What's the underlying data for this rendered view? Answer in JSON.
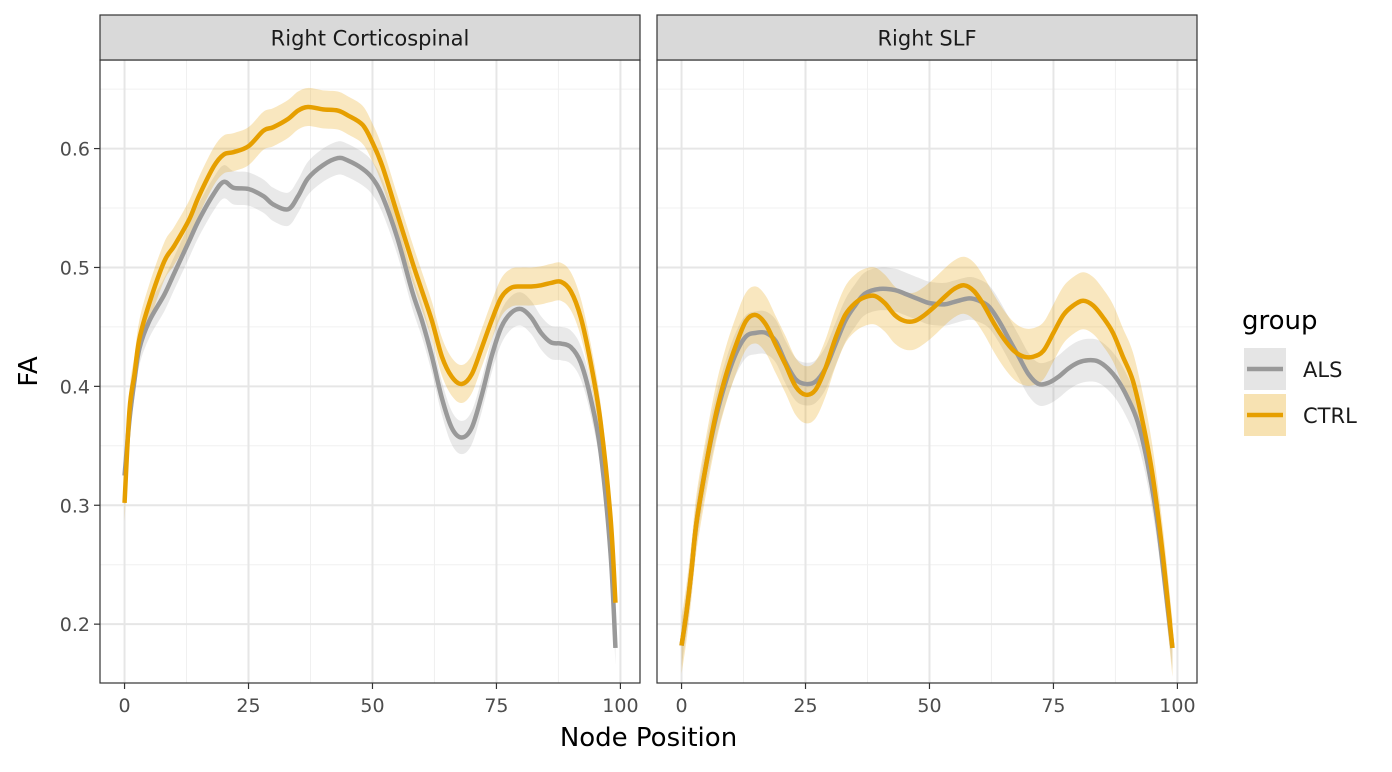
{
  "chart_data": {
    "type": "line",
    "xlabel": "Node Position",
    "ylabel": "FA",
    "xlim": [
      -4.95,
      103.95
    ],
    "ylim": [
      0.1505,
      0.6745
    ],
    "x_ticks": [
      0,
      25,
      50,
      75,
      100
    ],
    "y_ticks": [
      0.2,
      0.3,
      0.4,
      0.5,
      0.6
    ],
    "x_tick_labels": [
      "0",
      "25",
      "50",
      "75",
      "100"
    ],
    "y_tick_labels": [
      "0.2",
      "0.3",
      "0.4",
      "0.5",
      "0.6"
    ],
    "grid": true,
    "legend": {
      "title": "group",
      "position": "right",
      "entries": [
        "ALS",
        "CTRL"
      ]
    },
    "series_colors": {
      "ALS": "#999999",
      "CTRL": "#E69F00"
    },
    "panels": [
      {
        "strip_label": "Right Corticospinal",
        "series": [
          {
            "name": "ALS",
            "ribbon_half_width": 0.014,
            "points": [
              [
                0,
                0.325
              ],
              [
                1,
                0.372
              ],
              [
                2,
                0.405
              ],
              [
                3,
                0.432
              ],
              [
                5,
                0.455
              ],
              [
                8,
                0.477
              ],
              [
                10,
                0.495
              ],
              [
                13,
                0.522
              ],
              [
                15,
                0.54
              ],
              [
                18,
                0.562
              ],
              [
                20,
                0.572
              ],
              [
                22,
                0.567
              ],
              [
                25,
                0.566
              ],
              [
                28,
                0.56
              ],
              [
                30,
                0.553
              ],
              [
                33,
                0.549
              ],
              [
                35,
                0.56
              ],
              [
                37,
                0.575
              ],
              [
                40,
                0.586
              ],
              [
                43,
                0.592
              ],
              [
                45,
                0.59
              ],
              [
                48,
                0.583
              ],
              [
                50,
                0.575
              ],
              [
                52,
                0.56
              ],
              [
                55,
                0.525
              ],
              [
                58,
                0.48
              ],
              [
                60,
                0.455
              ],
              [
                62,
                0.425
              ],
              [
                64,
                0.39
              ],
              [
                66,
                0.365
              ],
              [
                68,
                0.357
              ],
              [
                70,
                0.365
              ],
              [
                72,
                0.392
              ],
              [
                74,
                0.425
              ],
              [
                76,
                0.45
              ],
              [
                78,
                0.462
              ],
              [
                80,
                0.465
              ],
              [
                82,
                0.458
              ],
              [
                84,
                0.445
              ],
              [
                86,
                0.437
              ],
              [
                88,
                0.436
              ],
              [
                90,
                0.433
              ],
              [
                92,
                0.42
              ],
              [
                94,
                0.39
              ],
              [
                96,
                0.345
              ],
              [
                98,
                0.26
              ],
              [
                99,
                0.18
              ]
            ]
          },
          {
            "name": "CTRL",
            "ribbon_half_width": 0.016,
            "points": [
              [
                0,
                0.302
              ],
              [
                1,
                0.38
              ],
              [
                2,
                0.41
              ],
              [
                3,
                0.44
              ],
              [
                5,
                0.47
              ],
              [
                8,
                0.505
              ],
              [
                10,
                0.518
              ],
              [
                13,
                0.54
              ],
              [
                15,
                0.56
              ],
              [
                18,
                0.585
              ],
              [
                20,
                0.595
              ],
              [
                22,
                0.597
              ],
              [
                25,
                0.602
              ],
              [
                28,
                0.615
              ],
              [
                30,
                0.618
              ],
              [
                33,
                0.625
              ],
              [
                35,
                0.632
              ],
              [
                37,
                0.635
              ],
              [
                40,
                0.633
              ],
              [
                43,
                0.632
              ],
              [
                45,
                0.628
              ],
              [
                48,
                0.62
              ],
              [
                50,
                0.605
              ],
              [
                52,
                0.585
              ],
              [
                55,
                0.545
              ],
              [
                58,
                0.505
              ],
              [
                60,
                0.48
              ],
              [
                62,
                0.455
              ],
              [
                64,
                0.425
              ],
              [
                66,
                0.408
              ],
              [
                68,
                0.402
              ],
              [
                70,
                0.41
              ],
              [
                72,
                0.432
              ],
              [
                74,
                0.455
              ],
              [
                76,
                0.475
              ],
              [
                78,
                0.483
              ],
              [
                80,
                0.484
              ],
              [
                82,
                0.484
              ],
              [
                84,
                0.485
              ],
              [
                86,
                0.487
              ],
              [
                88,
                0.488
              ],
              [
                90,
                0.48
              ],
              [
                92,
                0.458
              ],
              [
                94,
                0.42
              ],
              [
                96,
                0.37
              ],
              [
                98,
                0.29
              ],
              [
                99,
                0.218
              ]
            ]
          }
        ]
      },
      {
        "strip_label": "Right SLF",
        "series": [
          {
            "name": "ALS",
            "ribbon_half_width": 0.018,
            "points": [
              [
                0,
                0.182
              ],
              [
                1,
                0.21
              ],
              [
                2,
                0.245
              ],
              [
                3,
                0.285
              ],
              [
                5,
                0.335
              ],
              [
                7,
                0.375
              ],
              [
                9,
                0.405
              ],
              [
                11,
                0.428
              ],
              [
                13,
                0.442
              ],
              [
                15,
                0.445
              ],
              [
                17,
                0.445
              ],
              [
                19,
                0.438
              ],
              [
                21,
                0.42
              ],
              [
                23,
                0.406
              ],
              [
                25,
                0.402
              ],
              [
                27,
                0.404
              ],
              [
                29,
                0.415
              ],
              [
                31,
                0.435
              ],
              [
                33,
                0.455
              ],
              [
                35,
                0.468
              ],
              [
                37,
                0.478
              ],
              [
                40,
                0.482
              ],
              [
                43,
                0.481
              ],
              [
                45,
                0.478
              ],
              [
                48,
                0.473
              ],
              [
                50,
                0.47
              ],
              [
                53,
                0.469
              ],
              [
                55,
                0.471
              ],
              [
                58,
                0.474
              ],
              [
                60,
                0.472
              ],
              [
                62,
                0.467
              ],
              [
                64,
                0.455
              ],
              [
                66,
                0.44
              ],
              [
                68,
                0.425
              ],
              [
                70,
                0.41
              ],
              [
                72,
                0.402
              ],
              [
                74,
                0.403
              ],
              [
                76,
                0.408
              ],
              [
                78,
                0.415
              ],
              [
                80,
                0.42
              ],
              [
                82,
                0.422
              ],
              [
                84,
                0.421
              ],
              [
                86,
                0.415
              ],
              [
                88,
                0.405
              ],
              [
                90,
                0.39
              ],
              [
                92,
                0.37
              ],
              [
                94,
                0.335
              ],
              [
                96,
                0.285
              ],
              [
                98,
                0.215
              ],
              [
                99,
                0.18
              ]
            ]
          },
          {
            "name": "CTRL",
            "ribbon_half_width": 0.024,
            "points": [
              [
                0,
                0.182
              ],
              [
                1,
                0.21
              ],
              [
                2,
                0.245
              ],
              [
                3,
                0.285
              ],
              [
                5,
                0.335
              ],
              [
                7,
                0.378
              ],
              [
                9,
                0.41
              ],
              [
                11,
                0.435
              ],
              [
                13,
                0.455
              ],
              [
                15,
                0.46
              ],
              [
                17,
                0.452
              ],
              [
                19,
                0.435
              ],
              [
                21,
                0.418
              ],
              [
                23,
                0.4
              ],
              [
                25,
                0.393
              ],
              [
                27,
                0.397
              ],
              [
                29,
                0.415
              ],
              [
                31,
                0.44
              ],
              [
                33,
                0.46
              ],
              [
                35,
                0.47
              ],
              [
                37,
                0.475
              ],
              [
                39,
                0.476
              ],
              [
                41,
                0.47
              ],
              [
                43,
                0.46
              ],
              [
                45,
                0.455
              ],
              [
                47,
                0.455
              ],
              [
                49,
                0.46
              ],
              [
                51,
                0.467
              ],
              [
                53,
                0.475
              ],
              [
                55,
                0.482
              ],
              [
                57,
                0.485
              ],
              [
                59,
                0.48
              ],
              [
                61,
                0.468
              ],
              [
                63,
                0.453
              ],
              [
                65,
                0.44
              ],
              [
                67,
                0.43
              ],
              [
                69,
                0.425
              ],
              [
                71,
                0.425
              ],
              [
                73,
                0.43
              ],
              [
                75,
                0.445
              ],
              [
                77,
                0.46
              ],
              [
                79,
                0.468
              ],
              [
                81,
                0.472
              ],
              [
                83,
                0.468
              ],
              [
                85,
                0.458
              ],
              [
                87,
                0.445
              ],
              [
                89,
                0.425
              ],
              [
                91,
                0.405
              ],
              [
                93,
                0.37
              ],
              [
                95,
                0.325
              ],
              [
                97,
                0.26
              ],
              [
                99,
                0.18
              ]
            ]
          }
        ]
      }
    ]
  }
}
